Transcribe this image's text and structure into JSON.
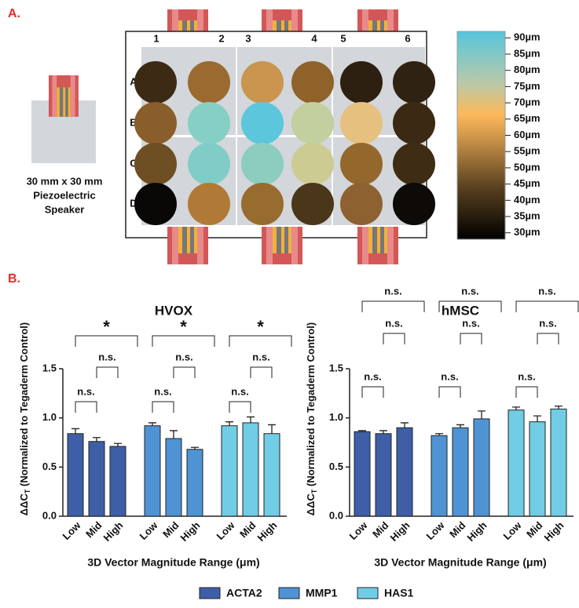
{
  "panel_a": {
    "label": "A.",
    "speaker_label": [
      "30 mm x 30 mm",
      "Piezoelectric",
      "Speaker"
    ],
    "columns": [
      "1",
      "2",
      "3",
      "4",
      "5",
      "6"
    ],
    "rows": [
      "A",
      "B",
      "C",
      "D"
    ],
    "well_colors": [
      [
        "#3d2a15",
        "#9a6a30",
        "#c9954f",
        "#8f6229",
        "#2e2010",
        "#2f2212"
      ],
      [
        "#8a5e2a",
        "#86cfc5",
        "#5bc6dc",
        "#c2cf9e",
        "#e6c07e",
        "#3b2913"
      ],
      [
        "#6e4e23",
        "#7fcdc6",
        "#8ccdc0",
        "#cccb92",
        "#94672d",
        "#3f2c14"
      ],
      [
        "#0a0806",
        "#b07a36",
        "#986b2e",
        "#4a3619",
        "#8d6230",
        "#0d0a07"
      ]
    ],
    "colorbar": {
      "lim": [
        28,
        92
      ],
      "ticks": [
        {
          "value": 90,
          "label": "90µm"
        },
        {
          "value": 85,
          "label": "85µm"
        },
        {
          "value": 80,
          "label": "80µm"
        },
        {
          "value": 75,
          "label": "75µm"
        },
        {
          "value": 70,
          "label": "70µm"
        },
        {
          "value": 65,
          "label": "65µm"
        },
        {
          "value": 60,
          "label": "60µm"
        },
        {
          "value": 55,
          "label": "55µm"
        },
        {
          "value": 50,
          "label": "50µm"
        },
        {
          "value": 45,
          "label": "45µm"
        },
        {
          "value": 40,
          "label": "40µm"
        },
        {
          "value": 35,
          "label": "35µm"
        },
        {
          "value": 30,
          "label": "30µm"
        }
      ]
    }
  },
  "panel_b_label": "B.",
  "chart_data": [
    {
      "type": "bar",
      "title": "HVOX",
      "ylabel": "ΔΔC",
      "ylabel_sub": "T",
      "ylabel_rest": " (Normalized to Tegaderm Control)",
      "xlabel": "3D Vector Magnitude Range (μm)",
      "categories": [
        "Low",
        "Mid",
        "High"
      ],
      "ylim": [
        0,
        1.5
      ],
      "yticks": [
        {
          "value": 0,
          "label": "0.0"
        },
        {
          "value": 0.5,
          "label": "0.5"
        },
        {
          "value": 1,
          "label": "1.0"
        },
        {
          "value": 1.5,
          "label": "1.5"
        }
      ],
      "series": [
        {
          "name": "ACTA2",
          "color": "#3e5fa8",
          "values": [
            0.84,
            0.76,
            0.71
          ],
          "errors": [
            0.05,
            0.04,
            0.03
          ]
        },
        {
          "name": "MMP1",
          "color": "#4f93d4",
          "values": [
            0.92,
            0.79,
            0.68
          ],
          "errors": [
            0.03,
            0.08,
            0.02
          ]
        },
        {
          "name": "HAS1",
          "color": "#70cde5",
          "values": [
            0.92,
            0.95,
            0.84
          ],
          "errors": [
            0.04,
            0.06,
            0.09
          ]
        }
      ],
      "significance": [
        [
          {
            "pair": [
              0,
              2
            ],
            "label": "*"
          },
          {
            "pair": [
              1,
              2
            ],
            "label": "n.s."
          },
          {
            "pair": [
              0,
              1
            ],
            "label": "n.s."
          }
        ],
        [
          {
            "pair": [
              0,
              2
            ],
            "label": "*"
          },
          {
            "pair": [
              1,
              2
            ],
            "label": "n.s."
          },
          {
            "pair": [
              0,
              1
            ],
            "label": "n.s."
          }
        ],
        [
          {
            "pair": [
              0,
              2
            ],
            "label": "*"
          },
          {
            "pair": [
              1,
              2
            ],
            "label": "n.s."
          },
          {
            "pair": [
              0,
              1
            ],
            "label": "n.s."
          }
        ]
      ]
    },
    {
      "type": "bar",
      "title": "hMSC",
      "ylabel": "ΔΔC",
      "ylabel_sub": "T",
      "ylabel_rest": " (Normalized to Tegaderm Control)",
      "xlabel": "3D Vector Magnitude Range (μm)",
      "categories": [
        "Low",
        "Mid",
        "High"
      ],
      "ylim": [
        0,
        1.5
      ],
      "yticks": [
        {
          "value": 0,
          "label": "0.0"
        },
        {
          "value": 0.5,
          "label": "0.5"
        },
        {
          "value": 1,
          "label": "1.0"
        },
        {
          "value": 1.5,
          "label": "1.5"
        }
      ],
      "series": [
        {
          "color": "#3e5fa8",
          "values": [
            0.86,
            0.84,
            0.9
          ],
          "errors": [
            0.01,
            0.03,
            0.05
          ]
        },
        {
          "color": "#4f93d4",
          "values": [
            0.82,
            0.9,
            0.99
          ],
          "errors": [
            0.02,
            0.03,
            0.08
          ]
        },
        {
          "color": "#70cde5",
          "values": [
            1.08,
            0.96,
            1.09
          ],
          "errors": [
            0.03,
            0.06,
            0.03
          ]
        }
      ],
      "significance": [
        [
          {
            "pair": [
              0,
              2
            ],
            "label": "n.s."
          },
          {
            "pair": [
              1,
              2
            ],
            "label": "n.s."
          },
          {
            "pair": [
              0,
              1
            ],
            "label": "n.s."
          }
        ],
        [
          {
            "pair": [
              0,
              2
            ],
            "label": "n.s."
          },
          {
            "pair": [
              1,
              2
            ],
            "label": "n.s."
          },
          {
            "pair": [
              0,
              1
            ],
            "label": "n.s."
          }
        ],
        [
          {
            "pair": [
              0,
              2
            ],
            "label": "n.s."
          },
          {
            "pair": [
              1,
              2
            ],
            "label": "n.s."
          },
          {
            "pair": [
              0,
              1
            ],
            "label": "n.s."
          }
        ]
      ]
    }
  ]
}
